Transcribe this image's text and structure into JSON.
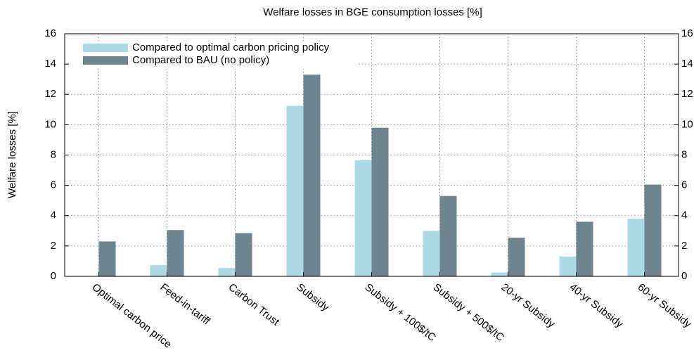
{
  "chart_data": {
    "type": "bar",
    "title": "Welfare losses in BGE consumption losses [%]",
    "y_label": "Welfare losses [%]",
    "categories": [
      "Optimal carbon price",
      "Feed-in-tariff",
      "Carbon Trust",
      "Subsidy",
      "Subsidy + 100$/tC",
      "Subsidy + 500$/tC",
      "20-yr Subsidy",
      "40-yr Subsidy",
      "60-yr Subsidy"
    ],
    "series": [
      {
        "name": "Compared to optimal carbon pricing policy",
        "color": "#add8e6",
        "values": [
          0,
          0.75,
          0.55,
          11.25,
          7.65,
          3.0,
          0.25,
          1.3,
          3.8
        ]
      },
      {
        "name": "Compared to BAU (no policy)",
        "color": "#6e848e",
        "values": [
          2.3,
          3.05,
          2.85,
          13.3,
          9.8,
          5.3,
          2.55,
          3.6,
          6.05
        ]
      }
    ],
    "ylim": [
      0,
      16
    ],
    "yticks": [
      0,
      2,
      4,
      6,
      8,
      10,
      12,
      14,
      16
    ],
    "grid": true,
    "legend": "top-left"
  }
}
